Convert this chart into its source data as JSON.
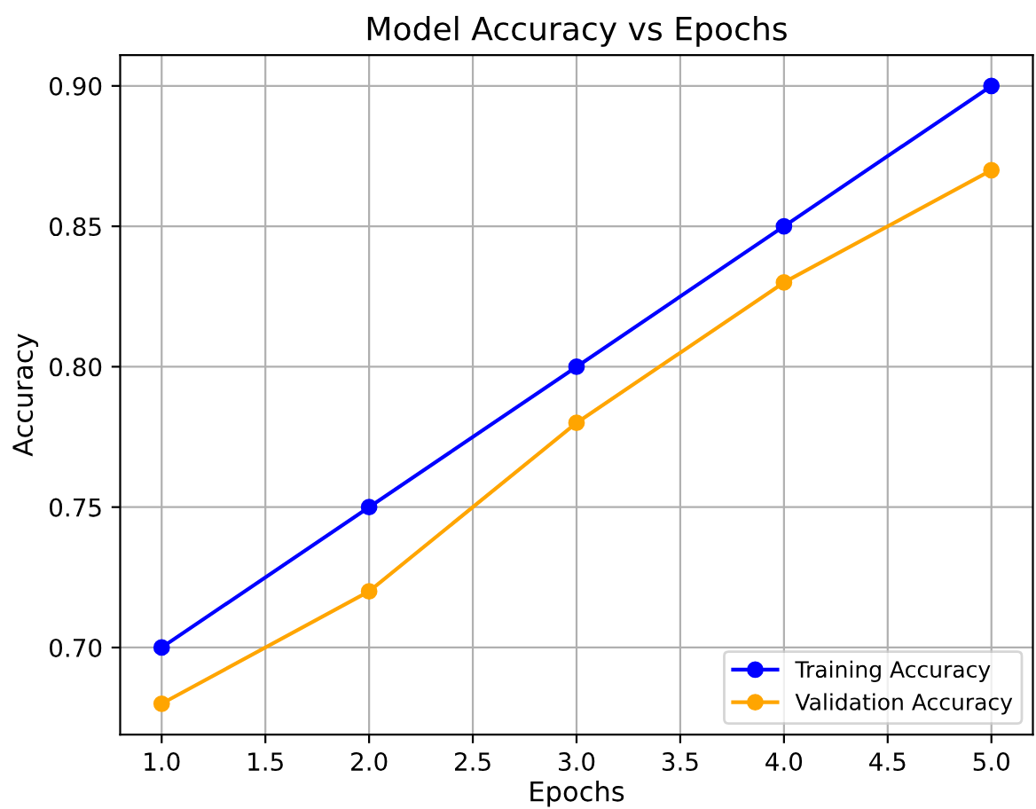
{
  "chart_data": {
    "type": "line",
    "title": "Model Accuracy vs Epochs",
    "xlabel": "Epochs",
    "ylabel": "Accuracy",
    "x": [
      1,
      2,
      3,
      4,
      5
    ],
    "series": [
      {
        "name": "Training Accuracy",
        "color": "#0000ff",
        "values": [
          0.7,
          0.75,
          0.8,
          0.85,
          0.9
        ]
      },
      {
        "name": "Validation Accuracy",
        "color": "#ffa500",
        "values": [
          0.68,
          0.72,
          0.78,
          0.83,
          0.87
        ]
      }
    ],
    "xlim": [
      0.8,
      5.2
    ],
    "ylim": [
      0.669,
      0.911
    ],
    "xticks": [
      {
        "value": 1,
        "label": "1.0"
      },
      {
        "value": 1.5,
        "label": "1.5"
      },
      {
        "value": 2,
        "label": "2.0"
      },
      {
        "value": 2.5,
        "label": "2.5"
      },
      {
        "value": 3,
        "label": "3.0"
      },
      {
        "value": 3.5,
        "label": "3.5"
      },
      {
        "value": 4,
        "label": "4.0"
      },
      {
        "value": 4.5,
        "label": "4.5"
      },
      {
        "value": 5,
        "label": "5.0"
      }
    ],
    "yticks": [
      {
        "value": 0.7,
        "label": "0.70"
      },
      {
        "value": 0.75,
        "label": "0.75"
      },
      {
        "value": 0.8,
        "label": "0.80"
      },
      {
        "value": 0.85,
        "label": "0.85"
      },
      {
        "value": 0.9,
        "label": "0.90"
      }
    ],
    "grid": true,
    "legend": "lower right",
    "marker": "circle",
    "line_style": "solid"
  }
}
